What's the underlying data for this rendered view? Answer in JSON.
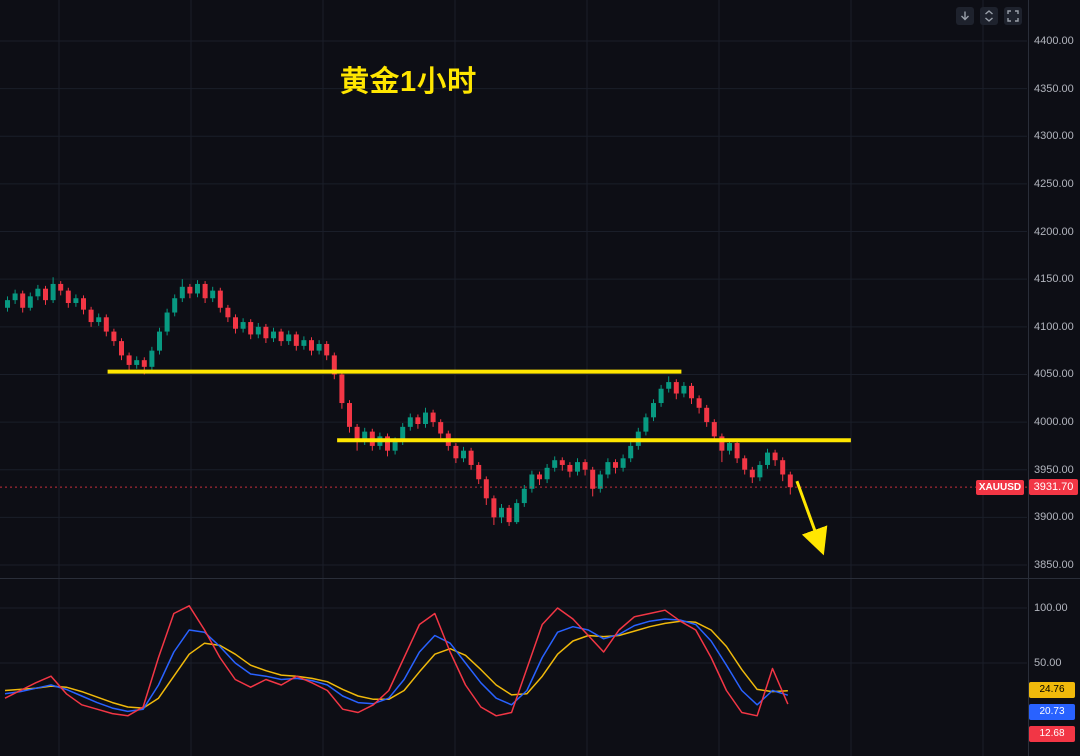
{
  "title": "黄金1小时",
  "symbol": "XAUUSD",
  "current_price": "3931.70",
  "colors": {
    "background": "#0d0e15",
    "grid": "#1a1e29",
    "up": "#089981",
    "down": "#f23645",
    "annotation": "#ffe600",
    "axis_text": "#b2b5be",
    "price_line": "#f23645"
  },
  "toolbar": {
    "icons": [
      "arrow-down-icon",
      "collapse-panes-icon",
      "fullscreen-icon"
    ]
  },
  "indicator_badges": [
    {
      "value": "24.76",
      "bg": "#f0b90b",
      "fg": "#000000"
    },
    {
      "value": "20.73",
      "bg": "#2962ff",
      "fg": "#ffffff"
    },
    {
      "value": "12.68",
      "bg": "#f23645",
      "fg": "#ffffff"
    }
  ],
  "chart_data": {
    "type": "candlestick",
    "symbol": "XAUUSD",
    "timeframe": "1小时",
    "price_range": [
      3850,
      4400
    ],
    "price_ticks": [
      4400,
      4350,
      4300,
      4250,
      4200,
      4150,
      4100,
      4050,
      4000,
      3950,
      3900,
      3850
    ],
    "last_price": 3931.7,
    "candles": [
      [
        4120,
        4132,
        4116,
        4128
      ],
      [
        4128,
        4139,
        4124,
        4135
      ],
      [
        4135,
        4138,
        4115,
        4120
      ],
      [
        4120,
        4136,
        4117,
        4132
      ],
      [
        4132,
        4144,
        4128,
        4140
      ],
      [
        4140,
        4143,
        4123,
        4128
      ],
      [
        4128,
        4152,
        4125,
        4145
      ],
      [
        4145,
        4148,
        4133,
        4138
      ],
      [
        4138,
        4141,
        4120,
        4125
      ],
      [
        4125,
        4134,
        4121,
        4130
      ],
      [
        4130,
        4133,
        4113,
        4118
      ],
      [
        4118,
        4121,
        4100,
        4105
      ],
      [
        4105,
        4114,
        4101,
        4110
      ],
      [
        4110,
        4113,
        4090,
        4095
      ],
      [
        4095,
        4098,
        4080,
        4085
      ],
      [
        4085,
        4088,
        4065,
        4070
      ],
      [
        4070,
        4073,
        4052,
        4060
      ],
      [
        4060,
        4069,
        4056,
        4065
      ],
      [
        4065,
        4068,
        4050,
        4058
      ],
      [
        4058,
        4079,
        4054,
        4075
      ],
      [
        4075,
        4099,
        4071,
        4095
      ],
      [
        4095,
        4119,
        4091,
        4115
      ],
      [
        4115,
        4134,
        4111,
        4130
      ],
      [
        4130,
        4150,
        4126,
        4142
      ],
      [
        4142,
        4145,
        4130,
        4135
      ],
      [
        4135,
        4149,
        4131,
        4145
      ],
      [
        4145,
        4148,
        4125,
        4130
      ],
      [
        4130,
        4142,
        4126,
        4138
      ],
      [
        4138,
        4141,
        4115,
        4120
      ],
      [
        4120,
        4123,
        4105,
        4110
      ],
      [
        4110,
        4113,
        4093,
        4098
      ],
      [
        4098,
        4109,
        4094,
        4105
      ],
      [
        4105,
        4108,
        4087,
        4092
      ],
      [
        4092,
        4104,
        4088,
        4100
      ],
      [
        4100,
        4103,
        4083,
        4088
      ],
      [
        4088,
        4099,
        4084,
        4095
      ],
      [
        4095,
        4098,
        4080,
        4085
      ],
      [
        4085,
        4096,
        4081,
        4092
      ],
      [
        4092,
        4095,
        4075,
        4080
      ],
      [
        4080,
        4090,
        4076,
        4086
      ],
      [
        4086,
        4089,
        4070,
        4075
      ],
      [
        4075,
        4086,
        4071,
        4082
      ],
      [
        4082,
        4085,
        4065,
        4070
      ],
      [
        4070,
        4073,
        4045,
        4050
      ],
      [
        4050,
        4053,
        4014,
        4020
      ],
      [
        4020,
        4023,
        3989,
        3995
      ],
      [
        3995,
        3998,
        3970,
        3980
      ],
      [
        3980,
        3994,
        3976,
        3990
      ],
      [
        3990,
        3993,
        3970,
        3975
      ],
      [
        3975,
        3989,
        3971,
        3985
      ],
      [
        3985,
        3988,
        3964,
        3970
      ],
      [
        3970,
        3984,
        3966,
        3980
      ],
      [
        3980,
        3999,
        3976,
        3995
      ],
      [
        3995,
        4009,
        3991,
        4005
      ],
      [
        4005,
        4008,
        3993,
        3998
      ],
      [
        3998,
        4015,
        3994,
        4010
      ],
      [
        4010,
        4013,
        3995,
        4000
      ],
      [
        4000,
        4003,
        3983,
        3988
      ],
      [
        3988,
        3991,
        3970,
        3975
      ],
      [
        3975,
        3978,
        3957,
        3962
      ],
      [
        3962,
        3974,
        3958,
        3970
      ],
      [
        3970,
        3973,
        3950,
        3955
      ],
      [
        3955,
        3958,
        3935,
        3940
      ],
      [
        3940,
        3943,
        3913,
        3920
      ],
      [
        3920,
        3923,
        3892,
        3900
      ],
      [
        3900,
        3914,
        3894,
        3910
      ],
      [
        3910,
        3913,
        3891,
        3895
      ],
      [
        3895,
        3919,
        3893,
        3915
      ],
      [
        3915,
        3934,
        3911,
        3930
      ],
      [
        3930,
        3949,
        3926,
        3945
      ],
      [
        3945,
        3948,
        3934,
        3940
      ],
      [
        3940,
        3956,
        3936,
        3952
      ],
      [
        3952,
        3964,
        3948,
        3960
      ],
      [
        3960,
        3963,
        3949,
        3955
      ],
      [
        3955,
        3958,
        3942,
        3948
      ],
      [
        3948,
        3962,
        3944,
        3958
      ],
      [
        3958,
        3961,
        3944,
        3950
      ],
      [
        3950,
        3953,
        3922,
        3930
      ],
      [
        3930,
        3949,
        3926,
        3945
      ],
      [
        3945,
        3962,
        3941,
        3958
      ],
      [
        3958,
        3961,
        3946,
        3952
      ],
      [
        3952,
        3966,
        3948,
        3962
      ],
      [
        3962,
        3979,
        3958,
        3975
      ],
      [
        3975,
        3994,
        3971,
        3990
      ],
      [
        3990,
        4009,
        3986,
        4005
      ],
      [
        4005,
        4024,
        4001,
        4020
      ],
      [
        4020,
        4039,
        4016,
        4035
      ],
      [
        4035,
        4048,
        4031,
        4042
      ],
      [
        4042,
        4045,
        4024,
        4030
      ],
      [
        4030,
        4042,
        4026,
        4038
      ],
      [
        4038,
        4041,
        4019,
        4025
      ],
      [
        4025,
        4028,
        4009,
        4015
      ],
      [
        4015,
        4018,
        3995,
        4000
      ],
      [
        4000,
        4003,
        3980,
        3985
      ],
      [
        3985,
        3988,
        3958,
        3970
      ],
      [
        3970,
        3982,
        3966,
        3978
      ],
      [
        3978,
        3981,
        3957,
        3962
      ],
      [
        3962,
        3965,
        3945,
        3950
      ],
      [
        3950,
        3953,
        3936,
        3942
      ],
      [
        3942,
        3959,
        3938,
        3955
      ],
      [
        3955,
        3972,
        3951,
        3968
      ],
      [
        3968,
        3971,
        3954,
        3960
      ],
      [
        3960,
        3963,
        3938,
        3945
      ],
      [
        3945,
        3948,
        3924,
        3931.7
      ]
    ],
    "levels": [
      {
        "name": "resistance-line-upper",
        "price": 4053,
        "from": 13.5,
        "to": 89
      },
      {
        "name": "resistance-line-lower",
        "price": 3981,
        "from": 43.7,
        "to": 111.3
      }
    ],
    "arrow_annotation": {
      "from_index": 104.2,
      "from_price": 3938,
      "to_index": 107.2,
      "to_price": 3872
    },
    "indicator": {
      "name": "stochastic-kdj",
      "range": [
        0,
        100
      ],
      "ticks": [
        100,
        50
      ],
      "last_values": {
        "d": 24.76,
        "k": 20.73,
        "j": 12.68
      },
      "series": [
        {
          "name": "D",
          "color": "#f0b90b",
          "values": [
            25,
            26,
            27,
            29,
            28,
            24,
            19,
            14,
            10,
            9,
            18,
            38,
            58,
            68,
            66,
            58,
            48,
            43,
            39,
            38,
            36,
            33,
            26,
            20,
            17,
            17,
            25,
            42,
            58,
            63,
            57,
            44,
            30,
            21,
            22,
            38,
            58,
            70,
            75,
            74,
            75,
            79,
            83,
            86,
            88,
            87,
            80,
            65,
            44,
            26,
            24,
            24.76
          ]
        },
        {
          "name": "K",
          "color": "#2962ff",
          "values": [
            22,
            24,
            27,
            30,
            26,
            20,
            14,
            9,
            6,
            8,
            30,
            60,
            80,
            78,
            65,
            50,
            40,
            38,
            35,
            36,
            34,
            30,
            20,
            14,
            13,
            18,
            35,
            60,
            75,
            68,
            50,
            32,
            18,
            12,
            25,
            55,
            78,
            83,
            80,
            72,
            76,
            84,
            88,
            90,
            89,
            85,
            70,
            48,
            25,
            12,
            25,
            20.73
          ]
        },
        {
          "name": "J",
          "color": "#f23645",
          "values": [
            18,
            25,
            32,
            38,
            22,
            12,
            8,
            4,
            2,
            10,
            55,
            95,
            102,
            80,
            55,
            35,
            28,
            35,
            30,
            38,
            32,
            25,
            8,
            5,
            12,
            25,
            55,
            85,
            95,
            60,
            30,
            10,
            2,
            5,
            45,
            85,
            100,
            90,
            75,
            60,
            80,
            92,
            95,
            98,
            88,
            80,
            55,
            25,
            5,
            2,
            45,
            12.68
          ]
        }
      ]
    }
  }
}
